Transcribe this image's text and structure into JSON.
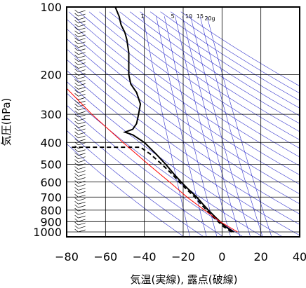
{
  "chart_data": {
    "type": "line",
    "title": "",
    "xlabel": "気温(実線), 露点(破線)",
    "ylabel": "気圧(hPa)",
    "xlim": [
      -80,
      40
    ],
    "ylim": [
      1050,
      100
    ],
    "y_scale": "log",
    "grid": true,
    "x_ticks": [
      -80,
      -60,
      -40,
      -20,
      0,
      20,
      40
    ],
    "y_ticks": [
      100,
      200,
      300,
      400,
      500,
      600,
      700,
      800,
      900,
      1000
    ],
    "x_tick_labels": [
      "−80",
      "−60",
      "−40",
      "−20",
      "0",
      "20",
      "40"
    ],
    "y_tick_labels": [
      "100",
      "200",
      "300",
      "400",
      "500",
      "600",
      "700",
      "800",
      "900",
      "1000"
    ],
    "mixing_ratio_labels": [
      "1",
      "5",
      "10",
      "15",
      "20g"
    ],
    "colors": {
      "temperature": "#000000",
      "dewpoint": "#000000",
      "parcel": "#ff0000",
      "background_lines": "#3333cc"
    },
    "series": [
      {
        "key": "temperature",
        "style": "solid",
        "points": [
          {
            "p": 1000,
            "t": 6
          },
          {
            "p": 950,
            "t": 2
          },
          {
            "p": 900,
            "t": -1
          },
          {
            "p": 850,
            "t": -4
          },
          {
            "p": 800,
            "t": -7
          },
          {
            "p": 750,
            "t": -10
          },
          {
            "p": 700,
            "t": -13
          },
          {
            "p": 650,
            "t": -17
          },
          {
            "p": 600,
            "t": -21
          },
          {
            "p": 550,
            "t": -25
          },
          {
            "p": 500,
            "t": -29
          },
          {
            "p": 450,
            "t": -34
          },
          {
            "p": 400,
            "t": -40
          },
          {
            "p": 370,
            "t": -46
          },
          {
            "p": 360,
            "t": -50
          },
          {
            "p": 350,
            "t": -46
          },
          {
            "p": 330,
            "t": -44
          },
          {
            "p": 300,
            "t": -43
          },
          {
            "p": 270,
            "t": -42
          },
          {
            "p": 240,
            "t": -44
          },
          {
            "p": 220,
            "t": -47
          },
          {
            "p": 200,
            "t": -48
          },
          {
            "p": 180,
            "t": -48
          },
          {
            "p": 160,
            "t": -48
          },
          {
            "p": 140,
            "t": -49
          },
          {
            "p": 130,
            "t": -50
          },
          {
            "p": 120,
            "t": -52
          },
          {
            "p": 110,
            "t": -53
          },
          {
            "p": 100,
            "t": -55
          }
        ]
      },
      {
        "key": "dewpoint",
        "style": "dashed",
        "points": [
          {
            "p": 1000,
            "t": 5
          },
          {
            "p": 950,
            "t": 1
          },
          {
            "p": 900,
            "t": -2
          },
          {
            "p": 850,
            "t": -5
          },
          {
            "p": 800,
            "t": -8
          },
          {
            "p": 750,
            "t": -11
          },
          {
            "p": 700,
            "t": -14
          },
          {
            "p": 650,
            "t": -18
          },
          {
            "p": 600,
            "t": -22
          },
          {
            "p": 550,
            "t": -26
          },
          {
            "p": 500,
            "t": -31
          },
          {
            "p": 450,
            "t": -37
          },
          {
            "p": 420,
            "t": -42
          },
          {
            "p": 420,
            "t": -78
          }
        ]
      },
      {
        "key": "parcel",
        "style": "solid",
        "points": [
          {
            "p": 1000,
            "t": 8
          },
          {
            "p": 900,
            "t": -1
          },
          {
            "p": 800,
            "t": -9
          },
          {
            "p": 700,
            "t": -18
          },
          {
            "p": 600,
            "t": -27
          },
          {
            "p": 500,
            "t": -38
          },
          {
            "p": 400,
            "t": -51
          },
          {
            "p": 300,
            "t": -67
          },
          {
            "p": 230,
            "t": -80
          }
        ]
      }
    ]
  }
}
